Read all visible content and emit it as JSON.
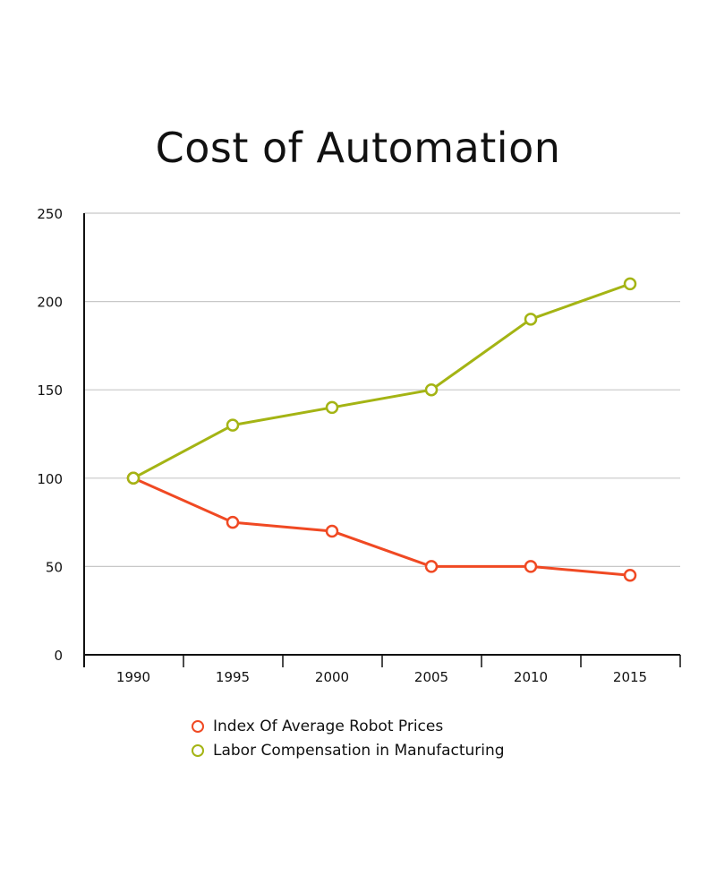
{
  "chart_data": {
    "type": "line",
    "title": "Cost of Automation",
    "xlabel": "",
    "ylabel": "",
    "x": [
      "1990",
      "1995",
      "2000",
      "2005",
      "2010",
      "2015"
    ],
    "ylim": [
      0,
      250
    ],
    "yticks": [
      "0",
      "50",
      "100",
      "150",
      "200",
      "250"
    ],
    "grid": true,
    "legend_position": "bottom",
    "series": [
      {
        "name": "Index Of Average Robot Prices",
        "color": "#f04923",
        "values": [
          100,
          75,
          70,
          50,
          50,
          45
        ]
      },
      {
        "name": "Labor Compensation in Manufacturing",
        "color": "#a4b414",
        "values": [
          100,
          130,
          140,
          150,
          190,
          210
        ]
      }
    ]
  }
}
